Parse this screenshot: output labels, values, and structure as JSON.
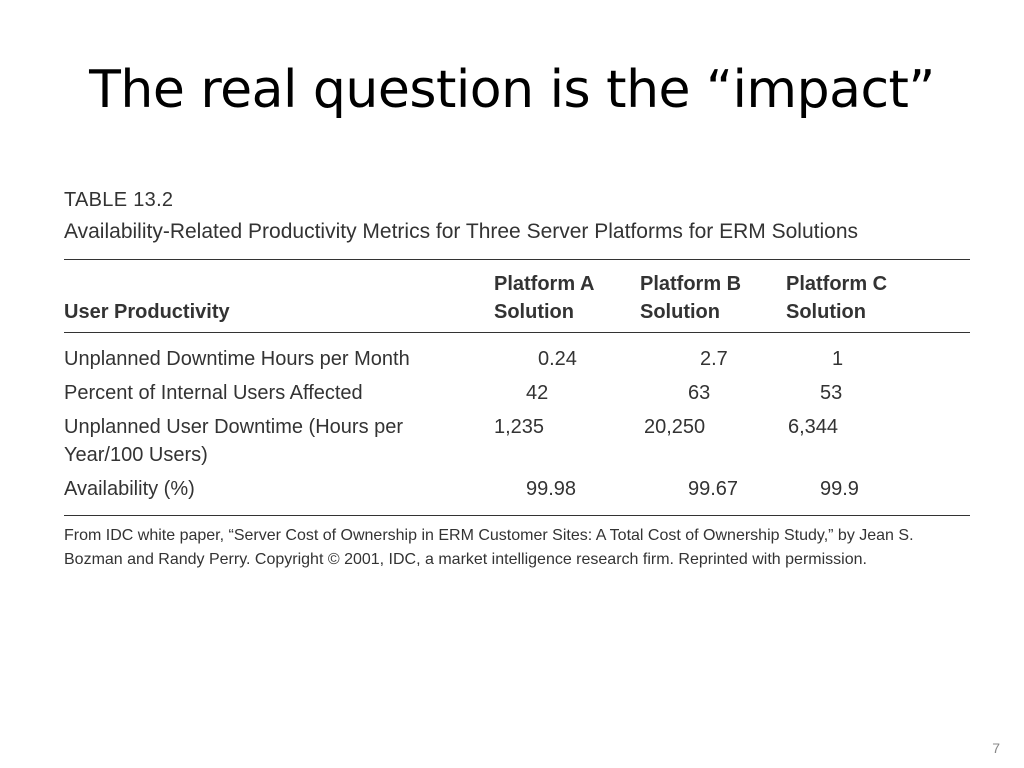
{
  "slide": {
    "title": "The real question is the “impact”",
    "page_number": "7"
  },
  "table": {
    "number": "TABLE 13.2",
    "caption": "Availability-Related Productivity Metrics for Three Server Platforms for ERM Solutions",
    "headers": {
      "row_label": "User Productivity",
      "platform_a_line1": "Platform A",
      "platform_a_line2": "Solution",
      "platform_b_line1": "Platform B",
      "platform_b_line2": "Solution",
      "platform_c_line1": "Platform C",
      "platform_c_line2": "Solution"
    },
    "rows": [
      {
        "label": "Unplanned Downtime Hours per Month",
        "a": "0.24",
        "b": "2.7",
        "c": "1"
      },
      {
        "label": "Percent of Internal Users Affected",
        "a": "42",
        "b": "63",
        "c": "53"
      },
      {
        "label": "Unplanned User Downtime (Hours per Year/100 Users)",
        "a": "1,235",
        "b": "20,250",
        "c": "6,344"
      },
      {
        "label": "Availability (%)",
        "a": "99.98",
        "b": "99.67",
        "c": "99.9"
      }
    ],
    "source": "From IDC white paper, “Server Cost of Ownership in ERM Customer Sites: A Total Cost of Ownership Study,” by Jean S. Bozman and Randy Perry. Copyright © 2001, IDC, a market intelligence research firm. Reprinted with permission."
  }
}
